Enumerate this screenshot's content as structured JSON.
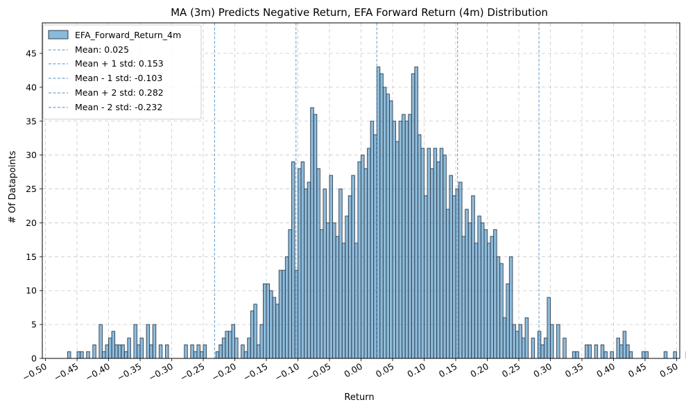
{
  "chart_data": {
    "type": "histogram",
    "title": "MA (3m) Predicts Negative Return, EFA Forward Return (4m) Distribution",
    "xlabel": "Return",
    "ylabel": "# Of Datapoints",
    "xlim": [
      -0.505,
      0.505
    ],
    "ylim": [
      0,
      49.5
    ],
    "xticks": [
      -0.5,
      -0.45,
      -0.4,
      -0.35,
      -0.3,
      -0.25,
      -0.2,
      -0.15,
      -0.1,
      -0.05,
      0.0,
      0.05,
      0.1,
      0.15,
      0.2,
      0.25,
      0.3,
      0.35,
      0.4,
      0.45,
      0.5
    ],
    "xtick_labels": [
      "−0.50",
      "−0.45",
      "−0.40",
      "−0.35",
      "−0.30",
      "−0.25",
      "−0.20",
      "−0.15",
      "−0.10",
      "−0.05",
      "0.00",
      "0.05",
      "0.10",
      "0.15",
      "0.20",
      "0.25",
      "0.30",
      "0.35",
      "0.40",
      "0.45",
      "0.50"
    ],
    "yticks": [
      0,
      5,
      10,
      15,
      20,
      25,
      30,
      35,
      40,
      45
    ],
    "ytick_labels": [
      "0",
      "5",
      "10",
      "15",
      "20",
      "25",
      "30",
      "35",
      "40",
      "45"
    ],
    "grid": true,
    "legend_position": "top-left",
    "bin_start": -0.465,
    "bin_width": 0.005,
    "counts": [
      1,
      0,
      0,
      1,
      1,
      0,
      1,
      0,
      2,
      0,
      5,
      1,
      2,
      3,
      4,
      2,
      2,
      2,
      1,
      3,
      0,
      5,
      2,
      3,
      0,
      5,
      2,
      5,
      0,
      2,
      0,
      2,
      0,
      0,
      0,
      0,
      0,
      2,
      0,
      2,
      1,
      2,
      1,
      2,
      0,
      0,
      0,
      1,
      2,
      3,
      4,
      4,
      5,
      3,
      0,
      2,
      1,
      3,
      7,
      8,
      2,
      5,
      11,
      11,
      10,
      9,
      8,
      13,
      13,
      15,
      19,
      29,
      13,
      28,
      29,
      25,
      26,
      37,
      36,
      28,
      19,
      25,
      20,
      27,
      20,
      18,
      25,
      17,
      21,
      24,
      27,
      17,
      29,
      30,
      28,
      31,
      35,
      33,
      43,
      42,
      40,
      39,
      38,
      35,
      32,
      35,
      36,
      35,
      36,
      42,
      43,
      33,
      31,
      24,
      31,
      28,
      31,
      29,
      31,
      30,
      22,
      27,
      24,
      25,
      26,
      18,
      22,
      20,
      24,
      17,
      21,
      20,
      19,
      17,
      18,
      19,
      15,
      14,
      6,
      11,
      15,
      5,
      4,
      5,
      3,
      6,
      0,
      3,
      0,
      4,
      2,
      3,
      9,
      5,
      0,
      5,
      0,
      3,
      0,
      0,
      1,
      1,
      0,
      0,
      2,
      2,
      0,
      2,
      0,
      2,
      1,
      0,
      1,
      0,
      3,
      2,
      4,
      2,
      1,
      0,
      0,
      0,
      1,
      1,
      0,
      0,
      0,
      0,
      0,
      1,
      0,
      0,
      1,
      0,
      0,
      0,
      1,
      0,
      0,
      0,
      1,
      0,
      0,
      0,
      0,
      0,
      0,
      1
    ],
    "series": [
      {
        "name": "EFA_Forward_Return_4m",
        "color": "#1f77b4",
        "edge_color": "#2c3e50"
      }
    ],
    "reference_lines": [
      {
        "label": "Mean: 0.025",
        "x": 0.025,
        "color": "#4a90c8"
      },
      {
        "label": "Mean + 1 std: 0.153",
        "x": 0.153,
        "color": "#4a90c8"
      },
      {
        "label": "Mean - 1 std: -0.103",
        "x": -0.103,
        "color": "#4a90c8"
      },
      {
        "label": "Mean + 2 std: 0.282",
        "x": 0.282,
        "color": "#4a90c8"
      },
      {
        "label": "Mean - 2 std: -0.232",
        "x": -0.232,
        "color": "#4a90c8"
      }
    ]
  }
}
